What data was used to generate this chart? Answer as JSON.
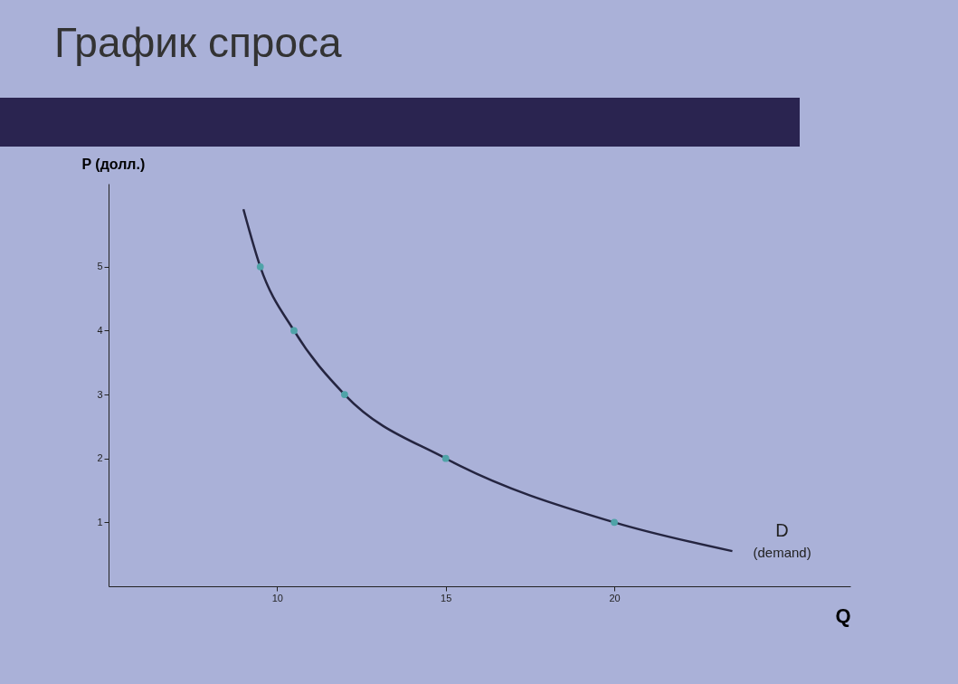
{
  "chart_data": {
    "type": "line",
    "title": "График спроса",
    "xlabel": "Q",
    "ylabel": "P (долл.)",
    "xlim": [
      5,
      27
    ],
    "ylim": [
      0,
      6.3
    ],
    "xticks": [
      10,
      15,
      20
    ],
    "yticks": [
      1,
      2,
      3,
      4,
      5
    ],
    "series": [
      {
        "name": "D",
        "color": "#252540",
        "x": [
          9,
          9.5,
          10.5,
          12,
          15,
          20,
          23.5
        ],
        "values": [
          5.9,
          5,
          4,
          3,
          2,
          1,
          0.55
        ]
      },
      {
        "type": "scatter",
        "marker": "circle",
        "color": "#4fa3a8",
        "x": [
          9.5,
          10.5,
          12,
          15,
          20
        ],
        "values": [
          5,
          4,
          3,
          2,
          1
        ]
      }
    ],
    "annotations": [
      "(demand)"
    ],
    "grid": false,
    "legend": false
  }
}
